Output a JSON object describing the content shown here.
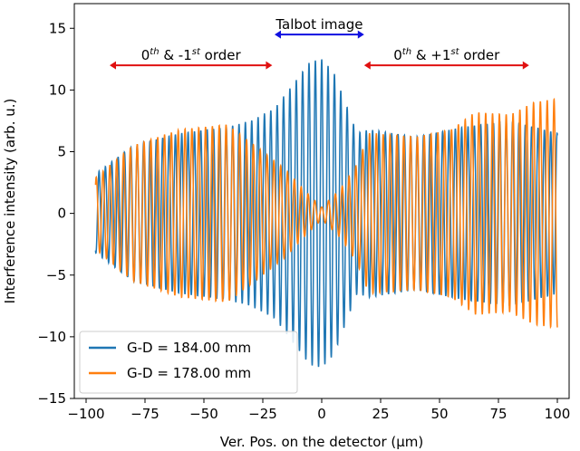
{
  "chart_data": {
    "type": "line",
    "title": "",
    "xlabel": "Ver. Pos. on the detector (μm)",
    "ylabel": "Interference intensity (arb. u.)",
    "xlim": [
      -105,
      105
    ],
    "ylim": [
      -15,
      17
    ],
    "xticks": [
      -100,
      -75,
      -50,
      -25,
      0,
      25,
      50,
      75,
      100
    ],
    "xtick_labels": [
      "−100",
      "−75",
      "−50",
      "−25",
      "0",
      "25",
      "50",
      "75",
      "100"
    ],
    "yticks": [
      -15,
      -10,
      -5,
      0,
      5,
      10,
      15
    ],
    "ytick_labels": [
      "−15",
      "−10",
      "−5",
      "0",
      "5",
      "10",
      "15"
    ],
    "grid": false,
    "legend_position": "lower-left",
    "series": [
      {
        "name": "G-D = 184.00 mm",
        "color": "#1f77b4",
        "x_range": [
          -96,
          100
        ],
        "period": 2.7,
        "envelope": [
          [
            -96,
            3.2
          ],
          [
            -80,
            5.5
          ],
          [
            -60,
            6.5
          ],
          [
            -40,
            7.0
          ],
          [
            -30,
            7.5
          ],
          [
            -20,
            8.5
          ],
          [
            -12,
            10.5
          ],
          [
            -5,
            12.3
          ],
          [
            0,
            12.5
          ],
          [
            5,
            11.5
          ],
          [
            10,
            9.0
          ],
          [
            15,
            6.5
          ],
          [
            20,
            6.8
          ],
          [
            40,
            6.2
          ],
          [
            60,
            7.0
          ],
          [
            80,
            7.5
          ],
          [
            100,
            6.5
          ]
        ]
      },
      {
        "name": "G-D = 178.00 mm",
        "color": "#ff7f0e",
        "x_range": [
          -96,
          100
        ],
        "period": 2.9,
        "envelope": [
          [
            -96,
            2.9
          ],
          [
            -80,
            5.5
          ],
          [
            -60,
            6.8
          ],
          [
            -40,
            7.2
          ],
          [
            -25,
            5.0
          ],
          [
            -15,
            3.5
          ],
          [
            -8,
            2.0
          ],
          [
            0,
            0.5
          ],
          [
            8,
            2.0
          ],
          [
            15,
            4.0
          ],
          [
            20,
            6.5
          ],
          [
            40,
            6.2
          ],
          [
            55,
            6.8
          ],
          [
            65,
            8.2
          ],
          [
            80,
            8.0
          ],
          [
            90,
            9.0
          ],
          [
            100,
            9.3
          ]
        ]
      }
    ],
    "annotations": [
      {
        "label_pre": "0",
        "label_sup1": "th",
        "label_mid": " & -1",
        "label_sup2": "st",
        "label_post": " order",
        "x_from": -90,
        "x_to": -21,
        "y": 12,
        "color": "#e01010"
      },
      {
        "label_pre": "Talbot image",
        "label_sup1": "",
        "label_mid": "",
        "label_sup2": "",
        "label_post": "",
        "x_from": -20,
        "x_to": 18,
        "y": 14.5,
        "color": "#1010e0"
      },
      {
        "label_pre": "0",
        "label_sup1": "th",
        "label_mid": " & +1",
        "label_sup2": "st",
        "label_post": " order",
        "x_from": 18,
        "x_to": 88,
        "y": 12,
        "color": "#e01010"
      }
    ]
  }
}
